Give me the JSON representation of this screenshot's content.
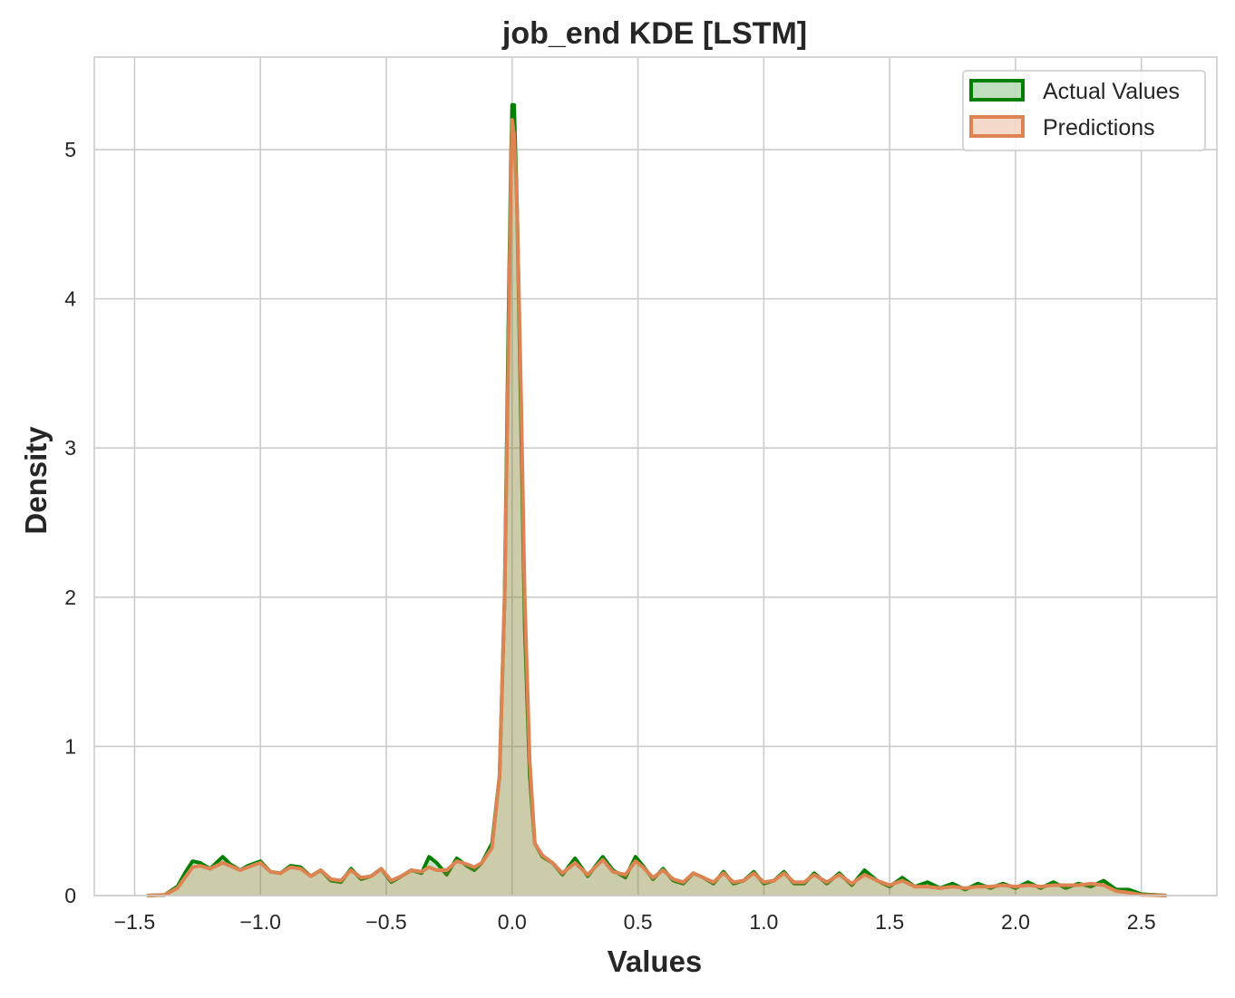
{
  "chart_data": {
    "type": "area",
    "title": "job_end KDE [LSTM]",
    "xlabel": "Values",
    "ylabel": "Density",
    "xlim": [
      -1.66,
      2.8
    ],
    "ylim": [
      0,
      5.62
    ],
    "xticks": [
      -1.5,
      -1.0,
      -0.5,
      0.0,
      0.5,
      1.0,
      1.5,
      2.0,
      2.5
    ],
    "xtick_labels": [
      "−1.5",
      "−1.0",
      "−0.5",
      "0.0",
      "0.5",
      "1.0",
      "1.5",
      "2.0",
      "2.5"
    ],
    "yticks": [
      0,
      1,
      2,
      3,
      4,
      5
    ],
    "ytick_labels": [
      "0",
      "1",
      "2",
      "3",
      "4",
      "5"
    ],
    "grid": true,
    "legend_position": "top-right",
    "series": [
      {
        "name": "Actual Values",
        "color": "#008000",
        "fill_color": "#008000",
        "points": [
          [
            -1.45,
            0
          ],
          [
            -1.38,
            0.005
          ],
          [
            -1.33,
            0.06
          ],
          [
            -1.3,
            0.15
          ],
          [
            -1.27,
            0.23
          ],
          [
            -1.24,
            0.22
          ],
          [
            -1.2,
            0.18
          ],
          [
            -1.15,
            0.26
          ],
          [
            -1.12,
            0.21
          ],
          [
            -1.08,
            0.17
          ],
          [
            -1.05,
            0.2
          ],
          [
            -1.0,
            0.23
          ],
          [
            -0.96,
            0.16
          ],
          [
            -0.92,
            0.15
          ],
          [
            -0.88,
            0.2
          ],
          [
            -0.84,
            0.19
          ],
          [
            -0.8,
            0.13
          ],
          [
            -0.76,
            0.17
          ],
          [
            -0.72,
            0.1
          ],
          [
            -0.68,
            0.09
          ],
          [
            -0.64,
            0.18
          ],
          [
            -0.6,
            0.11
          ],
          [
            -0.56,
            0.13
          ],
          [
            -0.52,
            0.18
          ],
          [
            -0.48,
            0.09
          ],
          [
            -0.44,
            0.13
          ],
          [
            -0.4,
            0.17
          ],
          [
            -0.36,
            0.15
          ],
          [
            -0.33,
            0.26
          ],
          [
            -0.3,
            0.22
          ],
          [
            -0.26,
            0.14
          ],
          [
            -0.22,
            0.25
          ],
          [
            -0.18,
            0.2
          ],
          [
            -0.15,
            0.17
          ],
          [
            -0.12,
            0.22
          ],
          [
            -0.08,
            0.35
          ],
          [
            -0.05,
            0.8
          ],
          [
            -0.03,
            2.0
          ],
          [
            -0.015,
            3.8
          ],
          [
            -0.005,
            4.9
          ],
          [
            0.0,
            5.3
          ],
          [
            0.008,
            5.3
          ],
          [
            0.02,
            4.6
          ],
          [
            0.035,
            3.2
          ],
          [
            0.05,
            1.8
          ],
          [
            0.07,
            0.8
          ],
          [
            0.09,
            0.35
          ],
          [
            0.12,
            0.26
          ],
          [
            0.16,
            0.22
          ],
          [
            0.2,
            0.14
          ],
          [
            0.25,
            0.25
          ],
          [
            0.3,
            0.13
          ],
          [
            0.36,
            0.26
          ],
          [
            0.4,
            0.17
          ],
          [
            0.45,
            0.12
          ],
          [
            0.49,
            0.26
          ],
          [
            0.52,
            0.2
          ],
          [
            0.56,
            0.11
          ],
          [
            0.6,
            0.18
          ],
          [
            0.64,
            0.1
          ],
          [
            0.68,
            0.08
          ],
          [
            0.72,
            0.15
          ],
          [
            0.76,
            0.12
          ],
          [
            0.8,
            0.08
          ],
          [
            0.84,
            0.16
          ],
          [
            0.88,
            0.08
          ],
          [
            0.92,
            0.1
          ],
          [
            0.96,
            0.16
          ],
          [
            1.0,
            0.08
          ],
          [
            1.04,
            0.1
          ],
          [
            1.08,
            0.16
          ],
          [
            1.12,
            0.08
          ],
          [
            1.16,
            0.08
          ],
          [
            1.2,
            0.15
          ],
          [
            1.25,
            0.08
          ],
          [
            1.3,
            0.15
          ],
          [
            1.35,
            0.07
          ],
          [
            1.4,
            0.17
          ],
          [
            1.45,
            0.1
          ],
          [
            1.5,
            0.06
          ],
          [
            1.55,
            0.12
          ],
          [
            1.6,
            0.06
          ],
          [
            1.65,
            0.09
          ],
          [
            1.7,
            0.05
          ],
          [
            1.75,
            0.08
          ],
          [
            1.8,
            0.04
          ],
          [
            1.85,
            0.08
          ],
          [
            1.9,
            0.05
          ],
          [
            1.95,
            0.08
          ],
          [
            2.0,
            0.05
          ],
          [
            2.05,
            0.09
          ],
          [
            2.1,
            0.05
          ],
          [
            2.15,
            0.09
          ],
          [
            2.2,
            0.05
          ],
          [
            2.25,
            0.08
          ],
          [
            2.3,
            0.06
          ],
          [
            2.35,
            0.1
          ],
          [
            2.4,
            0.04
          ],
          [
            2.45,
            0.04
          ],
          [
            2.5,
            0.01
          ],
          [
            2.6,
            0
          ]
        ]
      },
      {
        "name": "Predictions",
        "color": "#dd8452",
        "fill_color": "#dd8452",
        "points": [
          [
            -1.45,
            0
          ],
          [
            -1.38,
            0.005
          ],
          [
            -1.33,
            0.05
          ],
          [
            -1.3,
            0.12
          ],
          [
            -1.27,
            0.19
          ],
          [
            -1.24,
            0.2
          ],
          [
            -1.2,
            0.18
          ],
          [
            -1.15,
            0.22
          ],
          [
            -1.12,
            0.2
          ],
          [
            -1.08,
            0.17
          ],
          [
            -1.05,
            0.19
          ],
          [
            -1.0,
            0.22
          ],
          [
            -0.96,
            0.16
          ],
          [
            -0.92,
            0.15
          ],
          [
            -0.88,
            0.19
          ],
          [
            -0.84,
            0.18
          ],
          [
            -0.8,
            0.13
          ],
          [
            -0.76,
            0.17
          ],
          [
            -0.72,
            0.11
          ],
          [
            -0.68,
            0.1
          ],
          [
            -0.64,
            0.17
          ],
          [
            -0.6,
            0.12
          ],
          [
            -0.56,
            0.13
          ],
          [
            -0.52,
            0.18
          ],
          [
            -0.48,
            0.1
          ],
          [
            -0.44,
            0.13
          ],
          [
            -0.4,
            0.17
          ],
          [
            -0.36,
            0.16
          ],
          [
            -0.33,
            0.19
          ],
          [
            -0.3,
            0.17
          ],
          [
            -0.26,
            0.17
          ],
          [
            -0.22,
            0.23
          ],
          [
            -0.18,
            0.21
          ],
          [
            -0.15,
            0.19
          ],
          [
            -0.12,
            0.22
          ],
          [
            -0.08,
            0.32
          ],
          [
            -0.05,
            0.8
          ],
          [
            -0.03,
            2.0
          ],
          [
            -0.015,
            3.6
          ],
          [
            -0.005,
            4.8
          ],
          [
            0.0,
            5.2
          ],
          [
            0.008,
            5.1
          ],
          [
            0.02,
            4.6
          ],
          [
            0.035,
            3.4
          ],
          [
            0.05,
            2.0
          ],
          [
            0.07,
            0.9
          ],
          [
            0.09,
            0.35
          ],
          [
            0.12,
            0.27
          ],
          [
            0.16,
            0.22
          ],
          [
            0.2,
            0.15
          ],
          [
            0.25,
            0.22
          ],
          [
            0.3,
            0.14
          ],
          [
            0.36,
            0.24
          ],
          [
            0.4,
            0.16
          ],
          [
            0.45,
            0.14
          ],
          [
            0.49,
            0.23
          ],
          [
            0.52,
            0.19
          ],
          [
            0.56,
            0.12
          ],
          [
            0.6,
            0.17
          ],
          [
            0.64,
            0.11
          ],
          [
            0.68,
            0.09
          ],
          [
            0.72,
            0.15
          ],
          [
            0.76,
            0.12
          ],
          [
            0.8,
            0.09
          ],
          [
            0.84,
            0.15
          ],
          [
            0.88,
            0.09
          ],
          [
            0.92,
            0.1
          ],
          [
            0.96,
            0.15
          ],
          [
            1.0,
            0.09
          ],
          [
            1.04,
            0.1
          ],
          [
            1.08,
            0.15
          ],
          [
            1.12,
            0.09
          ],
          [
            1.16,
            0.09
          ],
          [
            1.2,
            0.14
          ],
          [
            1.25,
            0.09
          ],
          [
            1.3,
            0.14
          ],
          [
            1.35,
            0.08
          ],
          [
            1.4,
            0.14
          ],
          [
            1.45,
            0.1
          ],
          [
            1.5,
            0.07
          ],
          [
            1.55,
            0.1
          ],
          [
            1.6,
            0.06
          ],
          [
            1.65,
            0.06
          ],
          [
            1.7,
            0.05
          ],
          [
            1.75,
            0.06
          ],
          [
            1.8,
            0.05
          ],
          [
            1.85,
            0.06
          ],
          [
            1.9,
            0.06
          ],
          [
            1.95,
            0.07
          ],
          [
            2.0,
            0.06
          ],
          [
            2.05,
            0.07
          ],
          [
            2.1,
            0.06
          ],
          [
            2.15,
            0.07
          ],
          [
            2.2,
            0.07
          ],
          [
            2.25,
            0.07
          ],
          [
            2.3,
            0.08
          ],
          [
            2.35,
            0.07
          ],
          [
            2.4,
            0.03
          ],
          [
            2.45,
            0.02
          ],
          [
            2.5,
            0.005
          ],
          [
            2.6,
            0
          ]
        ]
      }
    ]
  }
}
